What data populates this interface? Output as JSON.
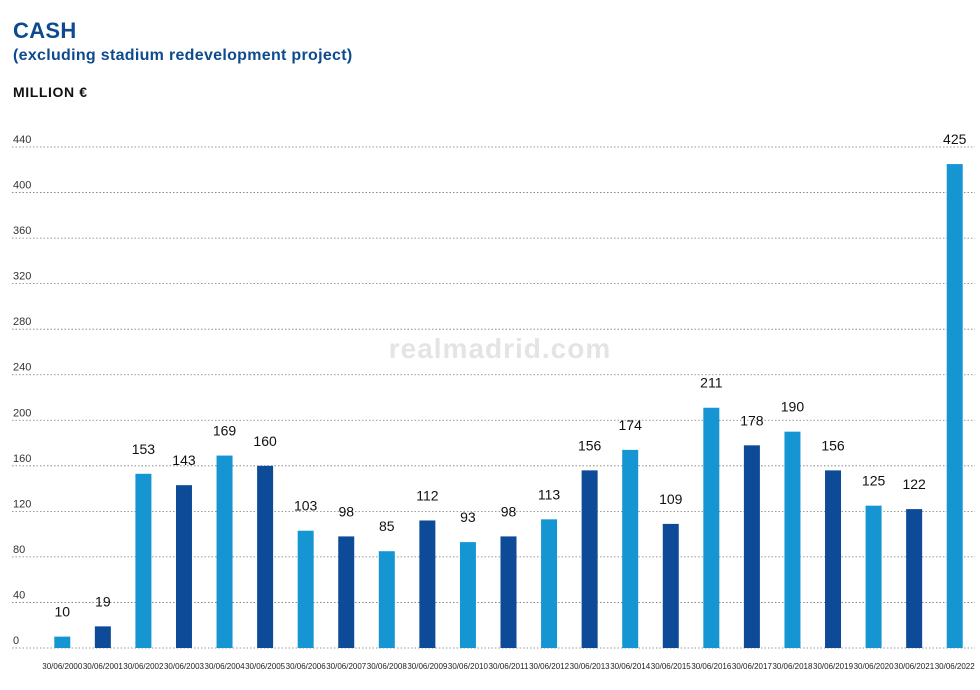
{
  "watermark": "realmadrid.com",
  "chart_data": {
    "type": "bar",
    "title": "CASH",
    "subtitle": "(excluding stadium redevelopment project)",
    "unit_label": "MILLION €",
    "categories": [
      "30/06/2000",
      "30/06/2001",
      "30/06/2002",
      "30/06/2003",
      "30/06/2004",
      "30/06/2005",
      "30/06/2006",
      "30/06/2007",
      "30/06/2008",
      "30/06/2009",
      "30/06/2010",
      "30/06/2011",
      "30/06/2012",
      "30/06/2013",
      "30/06/2014",
      "30/06/2015",
      "30/06/2016",
      "30/06/2017",
      "30/06/2018",
      "30/06/2019",
      "30/06/2020",
      "30/06/2021",
      "30/06/2022"
    ],
    "values": [
      10,
      19,
      153,
      143,
      169,
      160,
      103,
      98,
      85,
      112,
      93,
      98,
      113,
      156,
      174,
      109,
      211,
      178,
      190,
      156,
      125,
      122,
      425
    ],
    "data_labels": [
      "10",
      "19",
      "153",
      "143",
      "169",
      "160",
      "103",
      "98",
      "85",
      "112",
      "93",
      "98",
      "113",
      "156",
      "174",
      "109",
      "211",
      "178",
      "190",
      "156",
      "125",
      "122",
      "425"
    ],
    "colors": [
      "light",
      "dark",
      "light",
      "dark",
      "light",
      "dark",
      "light",
      "dark",
      "light",
      "dark",
      "light",
      "dark",
      "light",
      "dark",
      "light",
      "dark",
      "light",
      "dark",
      "light",
      "dark",
      "light",
      "dark",
      "light"
    ],
    "palette": {
      "light": "#1596d3",
      "dark": "#0d4a97"
    },
    "yticks": [
      0,
      40,
      80,
      120,
      160,
      200,
      240,
      280,
      320,
      360,
      400,
      440
    ],
    "ytick_labels": [
      "0",
      "40",
      "80",
      "120",
      "160",
      "200",
      "240",
      "280",
      "320",
      "360",
      "400",
      "440"
    ],
    "ylim": [
      0,
      440
    ],
    "grid": "horizontal dotted",
    "legend": "none"
  }
}
